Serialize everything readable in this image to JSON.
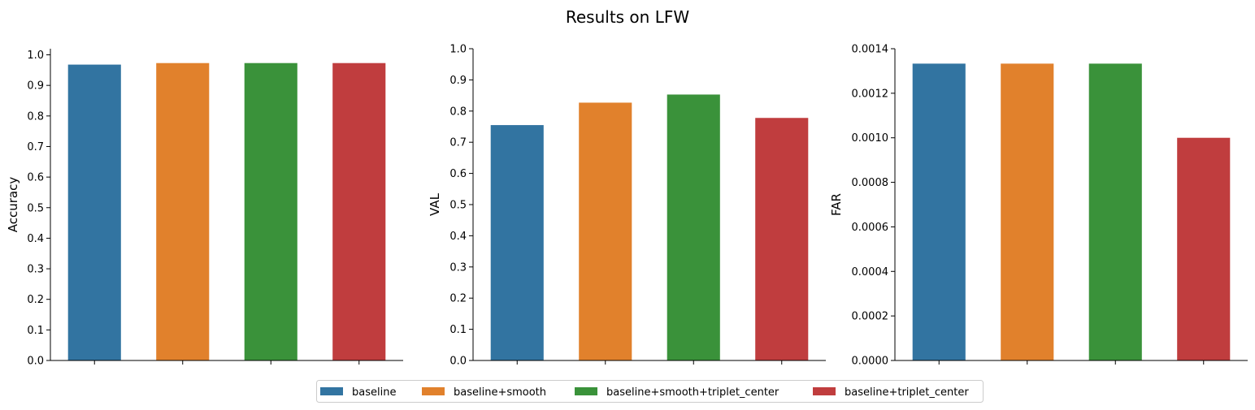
{
  "title": "Results on LFW",
  "colors": {
    "baseline": "#3274a1",
    "baseline+smooth": "#e1812c",
    "baseline+smooth+triplet_center": "#3a923a",
    "baseline+triplet_center": "#c03d3e"
  },
  "chart_data": [
    {
      "type": "bar",
      "ylabel": "Accuracy",
      "xlabel": "",
      "ylim": [
        0,
        1.02
      ],
      "yticks": [
        "0.0",
        "0.1",
        "0.2",
        "0.3",
        "0.4",
        "0.5",
        "0.6",
        "0.7",
        "0.8",
        "0.9",
        "1.0"
      ],
      "categories": [
        "baseline",
        "baseline+smooth",
        "baseline+smooth+triplet_center",
        "baseline+triplet_center"
      ],
      "values": [
        0.968,
        0.973,
        0.973,
        0.973
      ]
    },
    {
      "type": "bar",
      "ylabel": "VAL",
      "xlabel": "",
      "ylim": [
        0,
        1.0
      ],
      "yticks": [
        "0.0",
        "0.1",
        "0.2",
        "0.3",
        "0.4",
        "0.5",
        "0.6",
        "0.7",
        "0.8",
        "0.9",
        "1.0"
      ],
      "categories": [
        "baseline",
        "baseline+smooth",
        "baseline+smooth+triplet_center",
        "baseline+triplet_center"
      ],
      "values": [
        0.755,
        0.827,
        0.853,
        0.778
      ]
    },
    {
      "type": "bar",
      "ylabel": "FAR",
      "xlabel": "",
      "ylim": [
        0,
        0.0014
      ],
      "yticks": [
        "0.0000",
        "0.0002",
        "0.0004",
        "0.0006",
        "0.0008",
        "0.0010",
        "0.0012",
        "0.0014"
      ],
      "categories": [
        "baseline",
        "baseline+smooth",
        "baseline+smooth+triplet_center",
        "baseline+triplet_center"
      ],
      "values": [
        0.001333,
        0.001333,
        0.001333,
        0.001
      ]
    }
  ],
  "legend": {
    "placement": "bottom-center",
    "entries": [
      "baseline",
      "baseline+smooth",
      "baseline+smooth+triplet_center",
      "baseline+triplet_center"
    ]
  }
}
